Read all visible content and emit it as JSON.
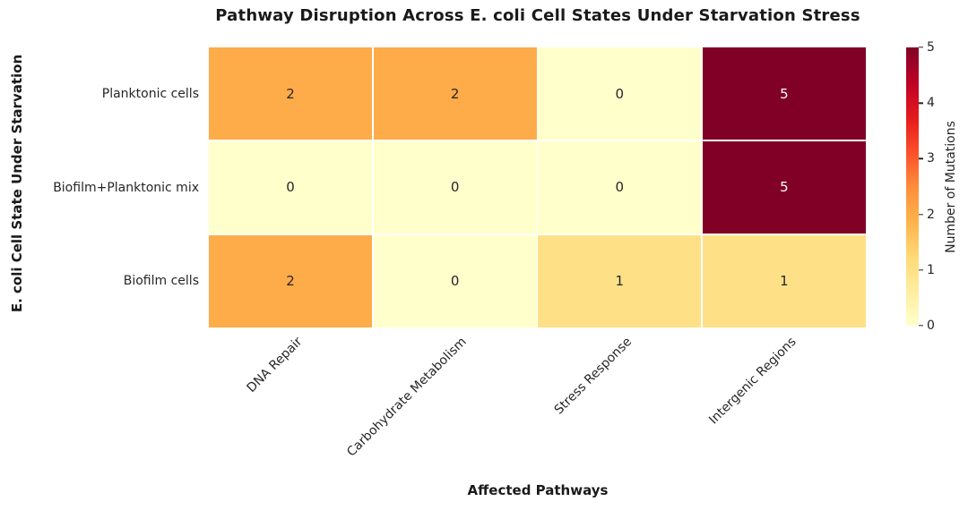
{
  "chart_data": {
    "type": "heatmap",
    "title": "Pathway Disruption Across E. coli Cell States Under Starvation Stress",
    "xlabel": "Affected Pathways",
    "ylabel": "E. coli Cell State Under Starvation",
    "categories": [
      "DNA Repair",
      "Carbohydrate Metabolism",
      "Stress Response",
      "Intergenic Regions"
    ],
    "rows": [
      "Planktonic cells",
      "Biofilm+Planktonic mix",
      "Biofilm cells"
    ],
    "values": [
      [
        2,
        2,
        0,
        5
      ],
      [
        0,
        0,
        0,
        5
      ],
      [
        2,
        0,
        1,
        1
      ]
    ],
    "vmin": 0,
    "vmax": 5,
    "colormap": "YlOrRd",
    "grid_line_color": "#FFFFFF",
    "value_colors": {
      "0": "#FFFFCC",
      "1": "#FEE187",
      "2": "#FEAB49",
      "5": "#800026"
    },
    "annot_dark_color": "#262626",
    "annot_light_color": "#FFFFFF",
    "annot_light_min_value": 4,
    "colorbar": {
      "label": "Number of Mutations",
      "ticks": [
        0,
        1,
        2,
        3,
        4,
        5
      ],
      "gradient_stops": [
        "#FFFFCC",
        "#FFEDA0",
        "#FED976",
        "#FEB24C",
        "#FD8D3C",
        "#FC4E2A",
        "#E31A1C",
        "#BD0026",
        "#800026"
      ]
    }
  }
}
